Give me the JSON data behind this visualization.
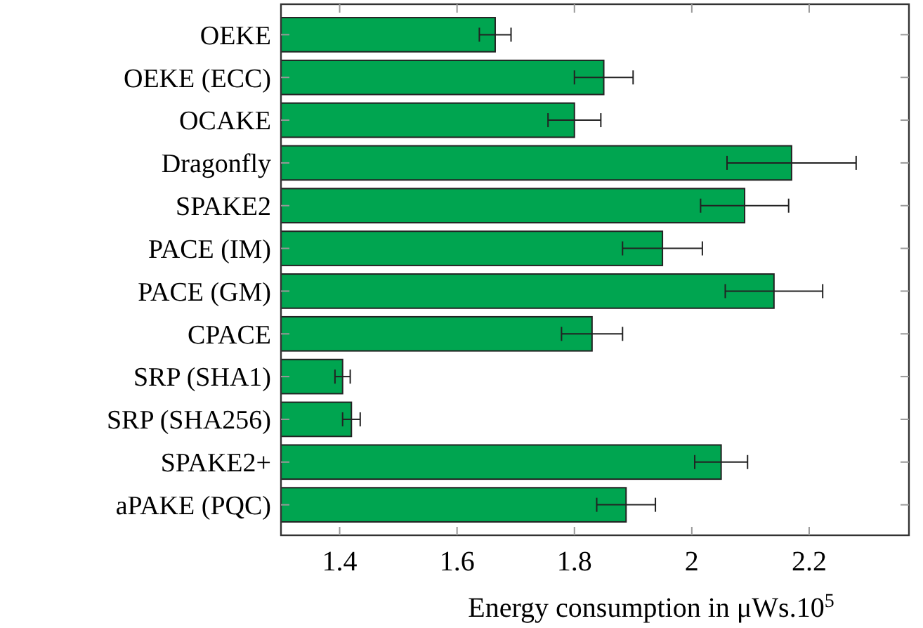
{
  "chart_data": {
    "type": "bar",
    "orientation": "horizontal",
    "categories": [
      "OEKE",
      "OEKE (ECC)",
      "OCAKE",
      "Dragonfly",
      "SPAKE2",
      "PACE (IM)",
      "PACE (GM)",
      "CPACE",
      "SRP (SHA1)",
      "SRP (SHA256)",
      "SPAKE2+",
      "aPAKE (PQC)"
    ],
    "values": [
      1.665,
      1.85,
      1.8,
      2.17,
      2.09,
      1.95,
      2.14,
      1.83,
      1.405,
      1.42,
      2.05,
      1.888
    ],
    "errors": [
      0.027,
      0.05,
      0.045,
      0.11,
      0.075,
      0.068,
      0.083,
      0.052,
      0.013,
      0.015,
      0.045,
      0.05
    ],
    "color": "#00a550",
    "xlabel": "Energy consumption in μWs.10$^{5}$",
    "xlim": [
      1.3,
      2.37
    ],
    "xticks": [
      1.4,
      1.6,
      1.8,
      2,
      2.2
    ],
    "grid": false
  }
}
